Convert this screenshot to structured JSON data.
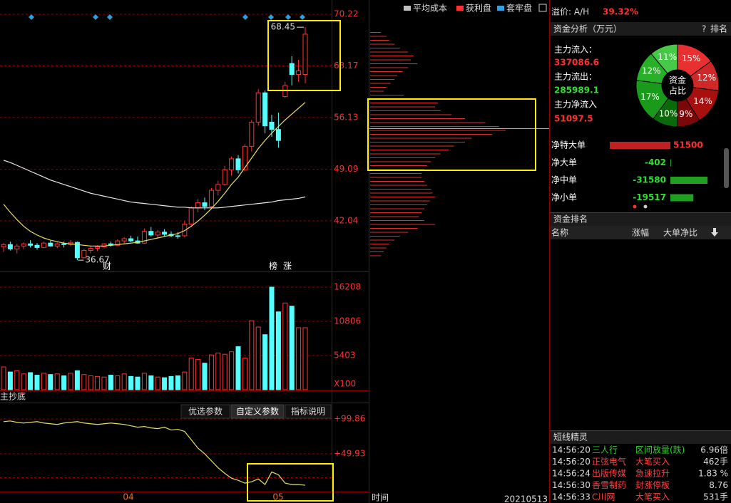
{
  "header": {
    "legend": [
      "平均成本",
      "获利盘",
      "套牢盘"
    ],
    "legend_colors": [
      "#c0c0c0",
      "#ff3030",
      "#30a0e0"
    ],
    "premium_label": "溢价: A/H",
    "premium_value": "39.32%"
  },
  "kline": {
    "type": "candlestick",
    "ylim": [
      35.23,
      72.16
    ],
    "yticks": [
      70.22,
      63.17,
      56.13,
      49.09,
      42.04
    ],
    "high_label": 68.45,
    "low_label": 36.67,
    "markers": [
      "财",
      "榜",
      "涨"
    ],
    "ohlc": [
      [
        38.5,
        39,
        37.8,
        38.8
      ],
      [
        38.8,
        39.2,
        38,
        38.2
      ],
      [
        38.2,
        38.9,
        37.6,
        38.6
      ],
      [
        38.6,
        39.1,
        38.2,
        38.9
      ],
      [
        38.9,
        39.4,
        38.4,
        38.7
      ],
      [
        38.7,
        39.0,
        38.1,
        38.4
      ],
      [
        38.4,
        39.2,
        38.3,
        39.0
      ],
      [
        39.0,
        39.3,
        38.5,
        38.6
      ],
      [
        38.6,
        39.1,
        38.3,
        38.9
      ],
      [
        38.9,
        39.2,
        38.4,
        38.8
      ],
      [
        38.8,
        39.4,
        38.6,
        39.1
      ],
      [
        39.1,
        39.2,
        36.67,
        37.0
      ],
      [
        37.0,
        38.2,
        36.9,
        38.0
      ],
      [
        38.0,
        38.6,
        37.6,
        38.3
      ],
      [
        38.3,
        38.7,
        37.9,
        38.5
      ],
      [
        38.5,
        39.0,
        38.3,
        38.9
      ],
      [
        38.9,
        39.2,
        38.5,
        38.7
      ],
      [
        38.7,
        39.5,
        38.6,
        39.3
      ],
      [
        39.3,
        39.8,
        39.0,
        39.6
      ],
      [
        39.6,
        40.0,
        39.1,
        39.3
      ],
      [
        39.3,
        39.9,
        38.9,
        39.0
      ],
      [
        39.0,
        41.0,
        38.9,
        40.6
      ],
      [
        40.6,
        41.2,
        39.9,
        40.1
      ],
      [
        40.1,
        40.8,
        39.7,
        40.5
      ],
      [
        40.5,
        40.9,
        39.9,
        40.2
      ],
      [
        40.2,
        40.6,
        39.8,
        40.0
      ],
      [
        40.0,
        40.5,
        39.6,
        39.9
      ],
      [
        40.0,
        42.0,
        39.8,
        41.6
      ],
      [
        41.6,
        44.0,
        41.2,
        43.8
      ],
      [
        43.8,
        45.0,
        43.2,
        44.5
      ],
      [
        44.5,
        45.2,
        43.5,
        44.0
      ],
      [
        44.0,
        46.5,
        43.8,
        46.2
      ],
      [
        46.2,
        47.5,
        45.5,
        47.0
      ],
      [
        47.0,
        49.5,
        46.8,
        49.0
      ],
      [
        49.0,
        50.8,
        48.2,
        50.5
      ],
      [
        50.5,
        51.0,
        48.5,
        49.0
      ],
      [
        49.0,
        52.5,
        48.8,
        52.2
      ],
      [
        52.2,
        55.8,
        51.5,
        55.5
      ],
      [
        55.5,
        60.0,
        55.0,
        59.5
      ],
      [
        59.5,
        59.8,
        54.0,
        55.0
      ],
      [
        55.5,
        56.5,
        53.5,
        54.5
      ],
      [
        54.5,
        56.8,
        52.0,
        53.0
      ],
      [
        59.0,
        61.0,
        58.8,
        60.5
      ],
      [
        63.5,
        64.5,
        60.5,
        62.0
      ],
      [
        62.0,
        64.0,
        61.0,
        62.5
      ],
      [
        62.0,
        68.45,
        60.8,
        67.5
      ]
    ],
    "ma_long": [
      50.3,
      50.0,
      49.6,
      49.2,
      48.8,
      48.4,
      48.0,
      47.6,
      47.3,
      47.0,
      46.7,
      46.4,
      46.1,
      45.8,
      45.6,
      45.4,
      45.2,
      45.0,
      44.8,
      44.6,
      44.5,
      44.4,
      44.3,
      44.2,
      44.1,
      44.0,
      43.9,
      43.9,
      43.8,
      43.8,
      43.8,
      43.8,
      43.8,
      43.9,
      44.0,
      44.1,
      44.2,
      44.3,
      44.4,
      44.5,
      44.6,
      44.8,
      44.9,
      45.0,
      45.1,
      45.3
    ],
    "ma_short": [
      44.3,
      43.2,
      42.2,
      41.3,
      40.6,
      40.1,
      39.7,
      39.4,
      39.2,
      39.0,
      38.9,
      38.8,
      38.7,
      38.6,
      38.6,
      38.6,
      38.7,
      38.8,
      38.9,
      39.0,
      39.1,
      39.3,
      39.5,
      39.7,
      39.9,
      40.1,
      40.3,
      40.7,
      41.3,
      42.0,
      42.8,
      43.7,
      44.7,
      45.8,
      47.0,
      48.0,
      49.3,
      50.6,
      51.9,
      53.0,
      54.0,
      54.9,
      55.8,
      56.6,
      57.4,
      58.2
    ]
  },
  "volume": {
    "type": "bar",
    "ylim": [
      0,
      18460
    ],
    "yticks": [
      16208,
      10806,
      5403
    ],
    "unit": "X100",
    "values": [
      3600,
      2800,
      3000,
      2500,
      2700,
      2300,
      2600,
      2400,
      2500,
      2200,
      2600,
      3000,
      2400,
      2200,
      2100,
      2000,
      2300,
      2200,
      2500,
      2100,
      2000,
      2600,
      2200,
      2000,
      1900,
      2100,
      2200,
      2800,
      5000,
      4800,
      4200,
      5500,
      5800,
      5600,
      6000,
      6800,
      5000,
      10900,
      9900,
      8700,
      16208,
      12300,
      13700,
      13200,
      9800,
      9800
    ]
  },
  "indicator": {
    "type": "line",
    "name": "主抄底",
    "buttons": [
      "优选参数",
      "自定义参数",
      "指标说明"
    ],
    "ylim": [
      -4.1,
      123.3
    ],
    "yticks": [
      {
        "value": 99.86,
        "label": "+99.86"
      },
      {
        "value": 49.93,
        "label": "+49.93"
      }
    ],
    "x_labels": [
      "04",
      "05"
    ],
    "values": [
      96,
      97,
      95,
      94,
      95,
      96,
      94,
      93,
      92,
      94,
      95,
      96,
      94,
      93,
      92,
      93,
      94,
      93,
      92,
      90,
      88,
      89,
      87,
      86,
      88,
      84,
      85,
      82,
      70,
      58,
      50,
      40,
      30,
      22,
      15,
      12,
      8,
      10,
      14,
      6,
      24,
      20,
      8,
      6,
      6,
      5
    ]
  },
  "chips": {
    "values": [
      8,
      12,
      14,
      18,
      22,
      28,
      32,
      30,
      35,
      28,
      24,
      20,
      18,
      15,
      12,
      10,
      25,
      45,
      50,
      48,
      52,
      60,
      70,
      85,
      95,
      100,
      90,
      75,
      70,
      62,
      58,
      52,
      48,
      45,
      42,
      40,
      38,
      38,
      40,
      42,
      45,
      46,
      48,
      44,
      42,
      40,
      38,
      36,
      40,
      48,
      35,
      28,
      22,
      18,
      14,
      12,
      10,
      8
    ],
    "time_label": "时间",
    "date": "20210513"
  },
  "fund": {
    "title": "资金分析（万元）",
    "help": "?",
    "rank": "排名",
    "inflow_label": "主力流入：",
    "inflow": 337086.6,
    "outflow_label": "主力流出：",
    "outflow": 285989.1,
    "net_label": "主力净流入",
    "net": 51097.5,
    "pie": {
      "center": [
        "资金",
        "占比"
      ],
      "values": [
        15,
        12,
        14,
        9,
        10,
        17,
        12,
        11
      ],
      "value_labels": [
        "15%",
        "12%",
        "14%",
        "9%",
        "10%",
        "17%",
        "12%",
        "11%"
      ],
      "colors": [
        "#e83030",
        "#d02828",
        "#a81010",
        "#7a0808",
        "#0a6a0a",
        "#1a9a1a",
        "#28b028",
        "#48c848"
      ]
    },
    "rows": [
      {
        "label": "净特大单",
        "value": 51500
      },
      {
        "label": "净大单",
        "value": -402
      },
      {
        "label": "净中单",
        "value": -31580
      },
      {
        "label": "净小单",
        "value": -19517
      }
    ]
  },
  "rank": {
    "title": "资金排名",
    "columns": [
      "名称",
      "涨幅",
      "大单净比"
    ]
  },
  "sprite": {
    "title": "短线精灵",
    "rows": [
      {
        "time": "14:56:20",
        "name": "三人行",
        "event": "区间放量(跌)",
        "value": "6.96倍",
        "color": "#30d030"
      },
      {
        "time": "14:56:20",
        "name": "正弦电气",
        "event": "大笔买入",
        "value": "462手",
        "color": "#ff4040"
      },
      {
        "time": "14:56:24",
        "name": "出版传媒",
        "event": "急速拉升",
        "value": "1.83 %",
        "color": "#ff4040"
      },
      {
        "time": "14:56:30",
        "name": "香雪制药",
        "event": "封涨停板",
        "value": "8.76",
        "color": "#ff4040"
      },
      {
        "time": "14:56:33",
        "name": "C川网",
        "event": "大笔买入",
        "value": "531手",
        "color": "#ff4040"
      }
    ]
  }
}
